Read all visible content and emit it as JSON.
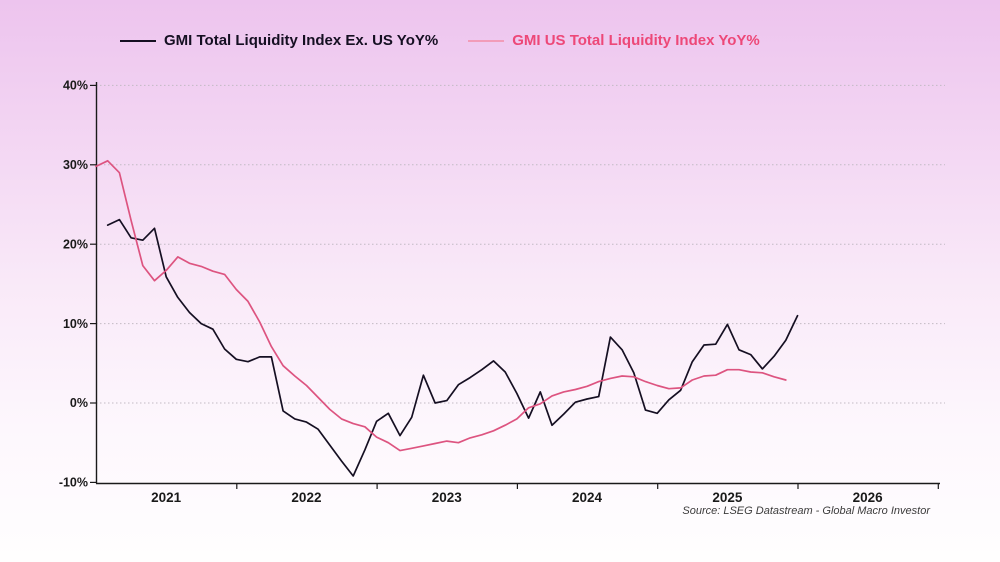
{
  "legend": {
    "items": [
      {
        "key": "ex_us",
        "label": "GMI Total Liquidity Index Ex. US YoY%",
        "text_color": "#150f22",
        "swatch_color": "#150f22"
      },
      {
        "key": "us",
        "label": "GMI US Total Liquidity Index YoY%",
        "text_color": "#ed4878",
        "swatch_color": "#f29cb9"
      }
    ]
  },
  "source_note": "Source: LSEG Datastream - Global Macro Investor",
  "chart_data": {
    "type": "line",
    "title": "",
    "legend_position": "top",
    "x_axis": {
      "range_years": [
        2021.0,
        2027.0
      ],
      "tick_years": [
        2022,
        2023,
        2024,
        2025,
        2026,
        2027
      ],
      "year_labels": [
        "2021",
        "2022",
        "2023",
        "2024",
        "2025",
        "2026"
      ],
      "year_label_positions": [
        2021.5,
        2022.5,
        2023.5,
        2024.5,
        2025.5,
        2026.5
      ],
      "grid": false
    },
    "y_axis": {
      "range": [
        -10,
        40
      ],
      "unit": "percent",
      "tick_values": [
        40,
        30,
        20,
        10,
        0,
        -10
      ],
      "tick_labels": [
        "40%",
        "30%",
        "20%",
        "10%",
        "0%",
        "-10%"
      ],
      "gridline_values": [
        40,
        30,
        20,
        10,
        0
      ],
      "grid_style": "dotted"
    },
    "series": [
      {
        "key": "ex_us",
        "name": "GMI Total Liquidity Index Ex. US YoY%",
        "color": "#150f22",
        "frequency": "monthly",
        "start_year_month": "2021-02",
        "values": [
          22.4,
          23.1,
          20.8,
          20.5,
          22.0,
          15.9,
          13.3,
          11.4,
          10.0,
          9.3,
          6.8,
          5.5,
          5.2,
          5.8,
          5.8,
          -1.0,
          -2.0,
          -2.4,
          -3.3,
          -5.3,
          -7.3,
          -9.2,
          -5.9,
          -2.3,
          -1.3,
          -4.1,
          -1.8,
          3.5,
          0.0,
          0.3,
          2.3,
          3.2,
          4.2,
          5.3,
          3.9,
          1.2,
          -1.9,
          1.4,
          -2.8,
          -1.4,
          0.1,
          0.5,
          0.8,
          8.3,
          6.7,
          3.8,
          -0.9,
          -1.3,
          0.4,
          1.6,
          5.2,
          7.3,
          7.4,
          9.9,
          6.7,
          6.1,
          4.3,
          5.9,
          7.9,
          11.0
        ]
      },
      {
        "key": "us",
        "name": "GMI US Total Liquidity Index YoY%",
        "color": "#dd5480",
        "frequency": "monthly",
        "start_year_month": "2021-01",
        "values": [
          29.8,
          30.5,
          29.0,
          23.0,
          17.3,
          15.4,
          16.7,
          18.4,
          17.6,
          17.2,
          16.6,
          16.2,
          14.3,
          12.8,
          10.2,
          7.1,
          4.7,
          3.4,
          2.2,
          0.7,
          -0.8,
          -2.0,
          -2.6,
          -3.0,
          -4.3,
          -5.0,
          -6.0,
          -5.7,
          -5.4,
          -5.1,
          -4.8,
          -5.0,
          -4.4,
          -4.0,
          -3.5,
          -2.8,
          -2.0,
          -0.6,
          -0.1,
          0.9,
          1.4,
          1.7,
          2.1,
          2.7,
          3.1,
          3.4,
          3.3,
          2.7,
          2.2,
          1.8,
          1.9,
          2.9,
          3.4,
          3.5,
          4.2,
          4.2,
          3.9,
          3.8,
          3.3,
          2.9
        ]
      }
    ]
  }
}
